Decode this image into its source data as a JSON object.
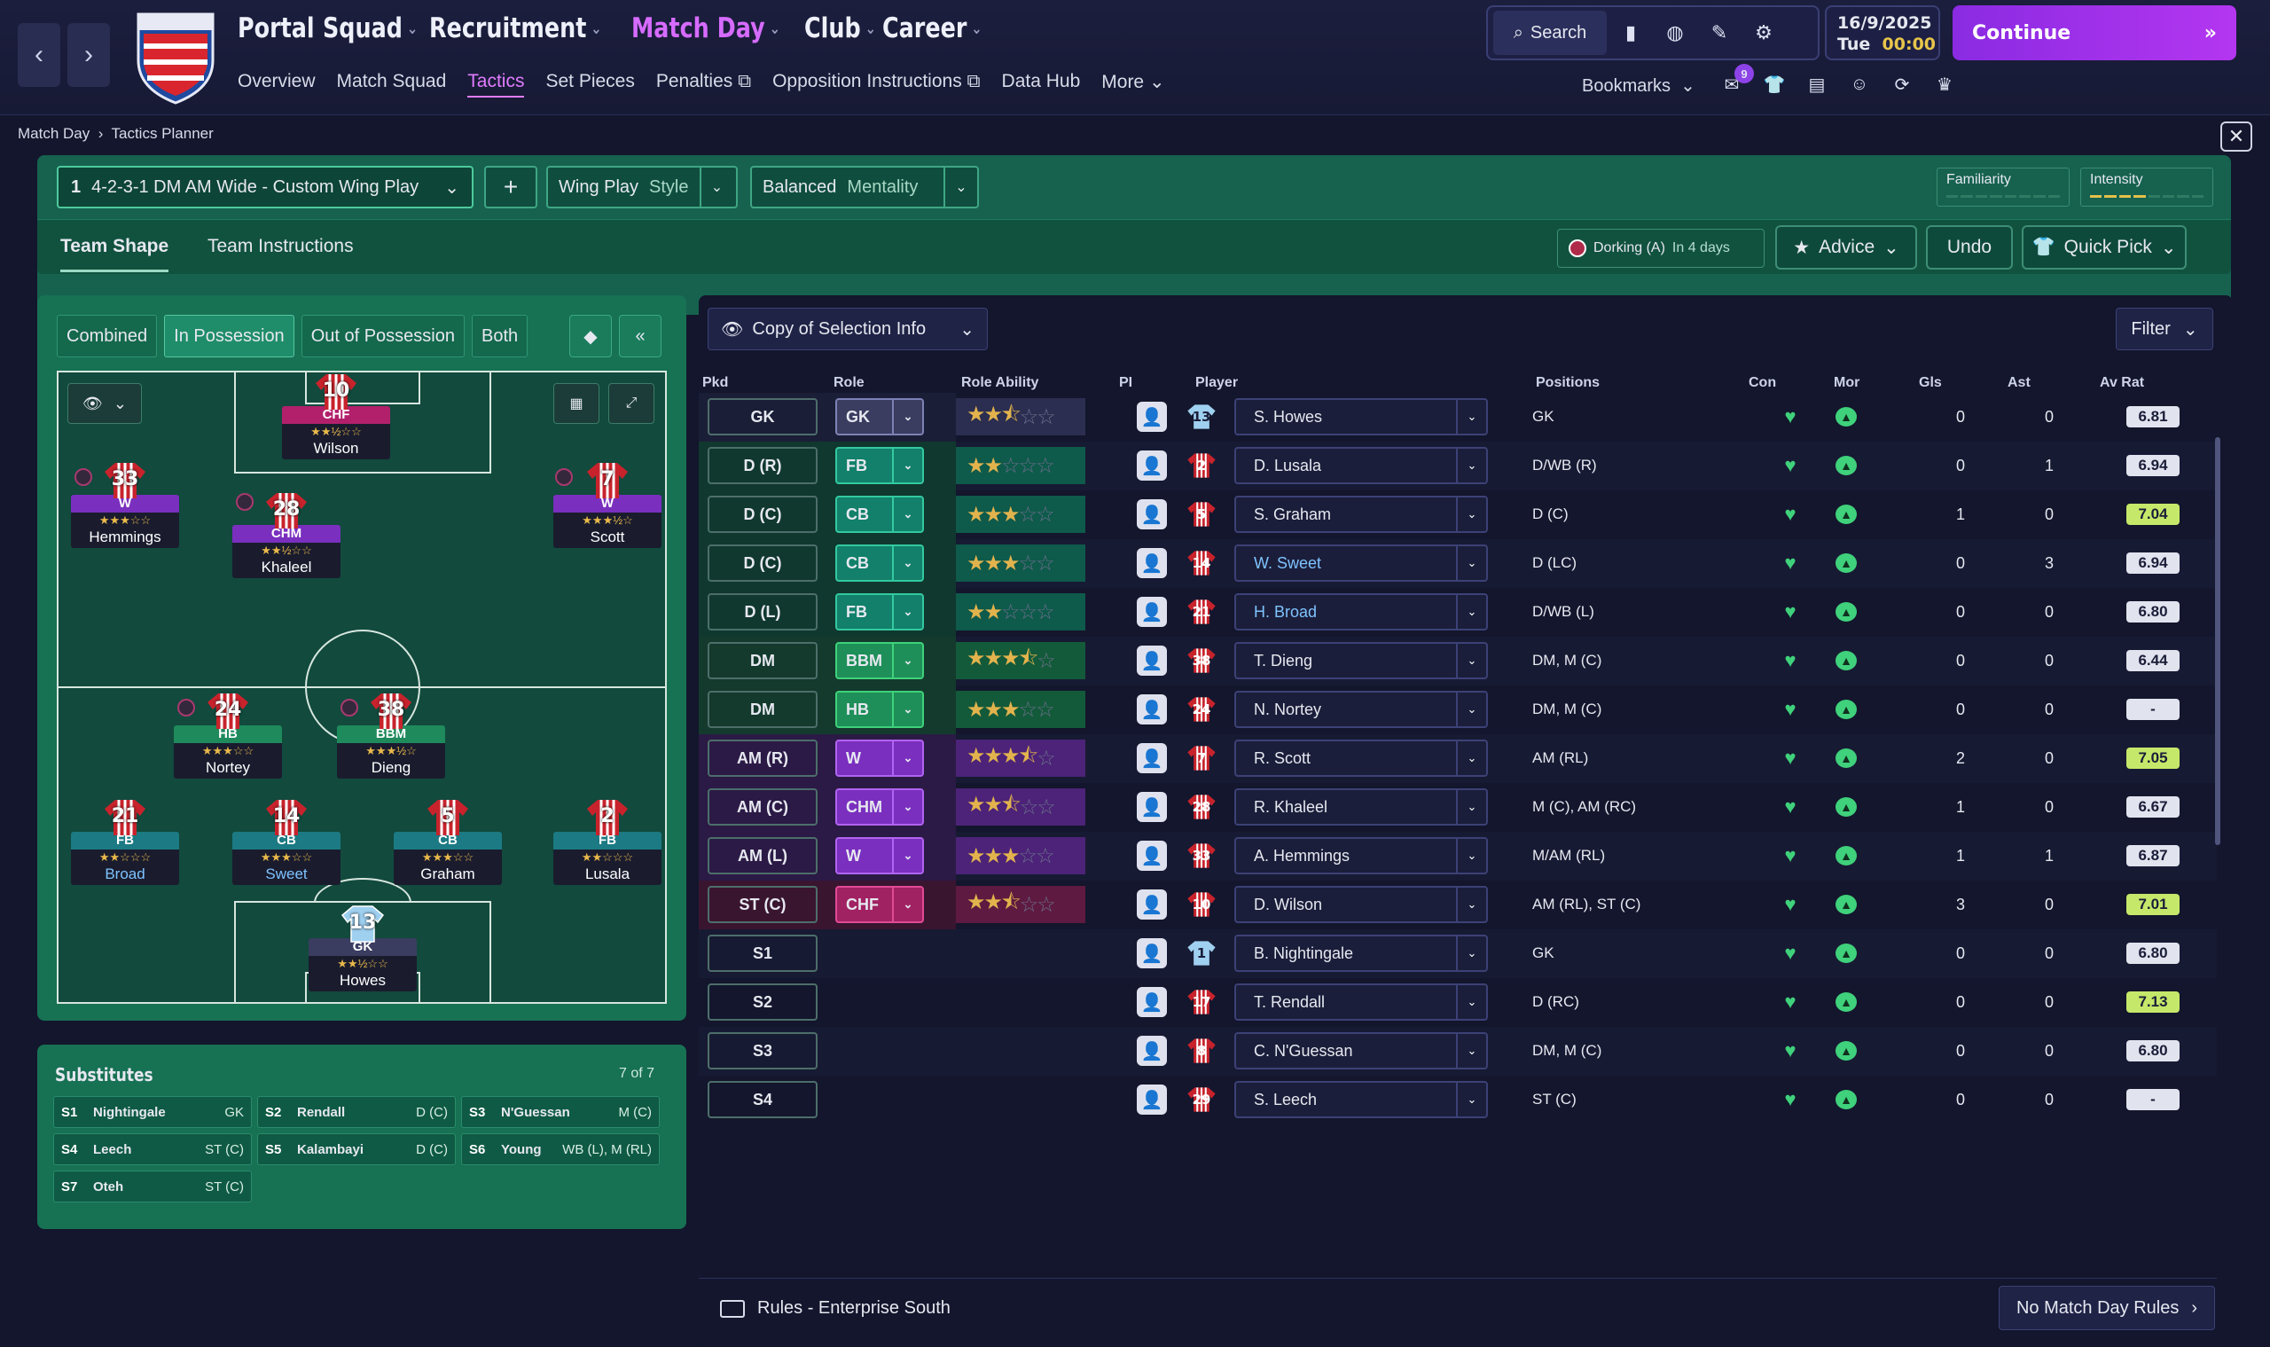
{
  "nav": {
    "main": [
      "Portal",
      "Squad",
      "Recruitment",
      "Match Day",
      "Club",
      "Career"
    ],
    "active_main": "Match Day",
    "sub": [
      "Overview",
      "Match Squad",
      "Tactics",
      "Set Pieces",
      "Penalties",
      "Opposition Instructions",
      "Data Hub",
      "More"
    ],
    "active_sub": "Tactics",
    "search": "Search",
    "date": "16/9/2025",
    "day": "Tue",
    "time": "00:00",
    "continue": "Continue",
    "bookmarks": "Bookmarks",
    "inbox_badge": "9"
  },
  "breadcrumb": {
    "parent": "Match Day",
    "current": "Tactics Planner"
  },
  "tactic": {
    "slot": "1",
    "formation": "4-2-3-1 DM AM Wide - Custom Wing Play",
    "style_value": "Wing Play",
    "style_label": "Style",
    "mentality_value": "Balanced",
    "mentality_label": "Mentality",
    "familiarity": "Familiarity",
    "intensity": "Intensity",
    "tabs": [
      "Team Shape",
      "Team Instructions"
    ],
    "next_match": "Dorking (A)",
    "next_when": "In 4 days",
    "advice": "Advice",
    "undo": "Undo",
    "quick_pick": "Quick Pick"
  },
  "pitch_tabs": [
    "Combined",
    "In Possession",
    "Out of Possession",
    "Both"
  ],
  "active_pitch_tab": "In Possession",
  "players_on_pitch": [
    {
      "num": "10",
      "role": "CHF",
      "stars": "★★½☆☆",
      "name": "Wilson",
      "color": "#b2206b"
    },
    {
      "num": "33",
      "role": "W",
      "stars": "★★★☆☆",
      "name": "Hemmings",
      "color": "#7a2fbf"
    },
    {
      "num": "28",
      "role": "CHM",
      "stars": "★★½☆☆",
      "name": "Khaleel",
      "color": "#7a2fbf"
    },
    {
      "num": "7",
      "role": "W",
      "stars": "★★★½☆",
      "name": "Scott",
      "color": "#7a2fbf"
    },
    {
      "num": "24",
      "role": "HB",
      "stars": "★★★☆☆",
      "name": "Nortey",
      "color": "#1f8a5c"
    },
    {
      "num": "38",
      "role": "BBM",
      "stars": "★★★½☆",
      "name": "Dieng",
      "color": "#1f8a5c"
    },
    {
      "num": "21",
      "role": "FB",
      "stars": "★★☆☆☆",
      "name": "Broad",
      "color": "#1b7a83"
    },
    {
      "num": "14",
      "role": "CB",
      "stars": "★★★☆☆",
      "name": "Sweet",
      "color": "#1b7a83"
    },
    {
      "num": "5",
      "role": "CB",
      "stars": "★★★☆☆",
      "name": "Graham",
      "color": "#1b7a83"
    },
    {
      "num": "2",
      "role": "FB",
      "stars": "★★☆☆☆",
      "name": "Lusala",
      "color": "#1b7a83"
    },
    {
      "num": "13",
      "role": "GK",
      "stars": "★★½☆☆",
      "name": "Howes",
      "color": "#3a3d60"
    }
  ],
  "subs": {
    "title": "Substitutes",
    "count": "7 of 7",
    "items": [
      {
        "slot": "S1",
        "name": "Nightingale",
        "pos": "GK"
      },
      {
        "slot": "S2",
        "name": "Rendall",
        "pos": "D (C)"
      },
      {
        "slot": "S3",
        "name": "N'Guessan",
        "pos": "M (C)"
      },
      {
        "slot": "S4",
        "name": "Leech",
        "pos": "ST (C)"
      },
      {
        "slot": "S5",
        "name": "Kalambayi",
        "pos": "D (C)"
      },
      {
        "slot": "S6",
        "name": "Young",
        "pos": "WB (L), M (RL)"
      },
      {
        "slot": "S7",
        "name": "Oteh",
        "pos": "ST (C)"
      }
    ]
  },
  "table": {
    "copy_label": "Copy of Selection Info",
    "filter": "Filter",
    "headers": [
      "Pkd",
      "Role",
      "Role Ability",
      "PI",
      "Player",
      "Positions",
      "Con",
      "Mor",
      "Gls",
      "Ast",
      "Av Rat"
    ],
    "rows": [
      {
        "pkd": "GK",
        "role": "GK",
        "stars": [
          2,
          1,
          2
        ],
        "num": "13",
        "player": "S. Howes",
        "pos": "GK",
        "gls": "0",
        "ast": "0",
        "rat": "6.81",
        "hi": false
      },
      {
        "pkd": "D (R)",
        "role": "FB",
        "stars": [
          2,
          0,
          3
        ],
        "num": "2",
        "player": "D. Lusala",
        "pos": "D/WB (R)",
        "gls": "0",
        "ast": "1",
        "rat": "6.94",
        "hi": false
      },
      {
        "pkd": "D (C)",
        "role": "CB",
        "stars": [
          3,
          0,
          2
        ],
        "num": "5",
        "player": "S. Graham",
        "pos": "D (C)",
        "gls": "1",
        "ast": "0",
        "rat": "7.04",
        "hi": true
      },
      {
        "pkd": "D (C)",
        "role": "CB",
        "stars": [
          3,
          0,
          2
        ],
        "num": "14",
        "player": "W. Sweet",
        "pos": "D (LC)",
        "gls": "0",
        "ast": "3",
        "rat": "6.94",
        "hi": false,
        "blue": true
      },
      {
        "pkd": "D (L)",
        "role": "FB",
        "stars": [
          2,
          0,
          3
        ],
        "num": "21",
        "player": "H. Broad",
        "pos": "D/WB (L)",
        "gls": "0",
        "ast": "0",
        "rat": "6.80",
        "hi": false,
        "blue": true
      },
      {
        "pkd": "DM",
        "role": "BBM",
        "stars": [
          3,
          1,
          1
        ],
        "num": "38",
        "player": "T. Dieng",
        "pos": "DM, M (C)",
        "gls": "0",
        "ast": "0",
        "rat": "6.44",
        "hi": false
      },
      {
        "pkd": "DM",
        "role": "HB",
        "stars": [
          3,
          0,
          2
        ],
        "num": "24",
        "player": "N. Nortey",
        "pos": "DM, M (C)",
        "gls": "0",
        "ast": "0",
        "rat": "-",
        "hi": false
      },
      {
        "pkd": "AM (R)",
        "role": "W",
        "stars": [
          3,
          1,
          1
        ],
        "num": "7",
        "player": "R. Scott",
        "pos": "AM (RL)",
        "gls": "2",
        "ast": "0",
        "rat": "7.05",
        "hi": true
      },
      {
        "pkd": "AM (C)",
        "role": "CHM",
        "stars": [
          2,
          1,
          2
        ],
        "num": "28",
        "player": "R. Khaleel",
        "pos": "M (C), AM (RC)",
        "gls": "1",
        "ast": "0",
        "rat": "6.67",
        "hi": false
      },
      {
        "pkd": "AM (L)",
        "role": "W",
        "stars": [
          3,
          0,
          2
        ],
        "num": "33",
        "player": "A. Hemmings",
        "pos": "M/AM (RL)",
        "gls": "1",
        "ast": "1",
        "rat": "6.87",
        "hi": false
      },
      {
        "pkd": "ST (C)",
        "role": "CHF",
        "stars": [
          2,
          1,
          2
        ],
        "num": "10",
        "player": "D. Wilson",
        "pos": "AM (RL), ST (C)",
        "gls": "3",
        "ast": "0",
        "rat": "7.01",
        "hi": true
      },
      {
        "pkd": "S1",
        "role": "",
        "stars": null,
        "num": "1",
        "player": "B. Nightingale",
        "pos": "GK",
        "gls": "0",
        "ast": "0",
        "rat": "6.80",
        "hi": false
      },
      {
        "pkd": "S2",
        "role": "",
        "stars": null,
        "num": "17",
        "player": "T. Rendall",
        "pos": "D (RC)",
        "gls": "0",
        "ast": "0",
        "rat": "7.13",
        "hi": true
      },
      {
        "pkd": "S3",
        "role": "",
        "stars": null,
        "num": "8",
        "player": "C. N'Guessan",
        "pos": "DM, M (C)",
        "gls": "0",
        "ast": "0",
        "rat": "6.80",
        "hi": false
      },
      {
        "pkd": "S4",
        "role": "",
        "stars": null,
        "num": "29",
        "player": "S. Leech",
        "pos": "ST (C)",
        "gls": "0",
        "ast": "0",
        "rat": "-",
        "hi": false
      }
    ],
    "rules_label": "Rules - Enterprise South",
    "no_rules": "No Match Day Rules"
  },
  "colors": {
    "accent_purple": "#d66bff",
    "tactic_green": "#16624f",
    "rating_high": "#c5e86a",
    "morale_green": "#3fd17b"
  }
}
